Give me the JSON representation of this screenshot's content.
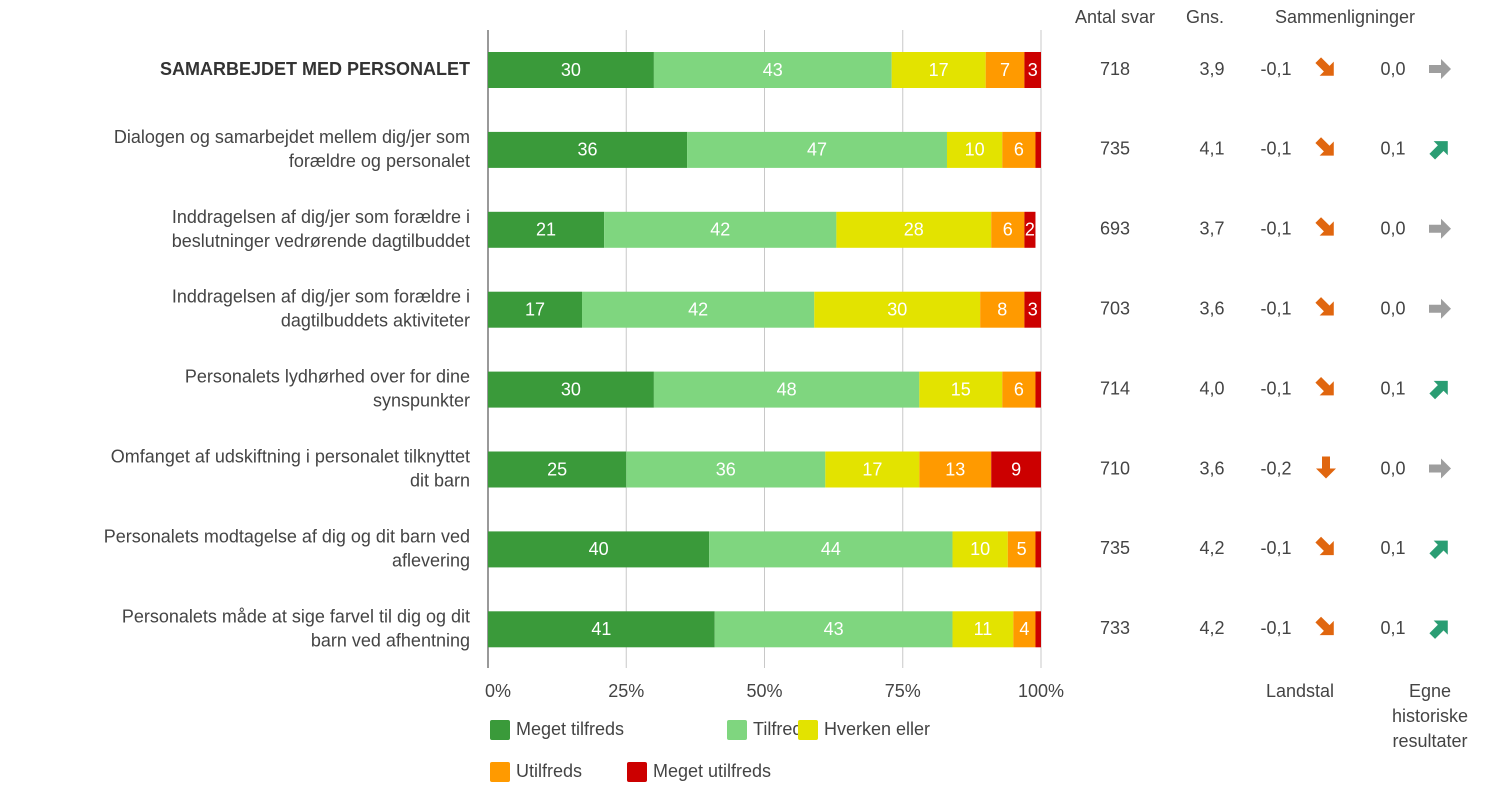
{
  "chart_data": {
    "type": "stacked-bar-horizontal",
    "categories": [
      "SAMARBEJDET MED PERSONALET",
      "Dialogen og samarbejdet mellem dig/jer som\nforældre og personalet",
      "Inddragelsen af dig/jer som forældre i\nbeslutninger vedrørende dagtilbuddet",
      "Inddragelsen af dig/jer som forældre i\ndagtilbuddets aktiviteter",
      "Personalets lydhørhed over for dine\nsynspunkter",
      "Omfanget af udskiftning i personalet tilknyttet\ndit barn",
      "Personalets modtagelse af dig og dit barn ved\naflevering",
      "Personalets måde at sige farvel til dig og dit\nbarn ved afhentning"
    ],
    "series": [
      {
        "name": "Meget tilfreds",
        "color": "#3a9a3a",
        "values": [
          30,
          36,
          21,
          17,
          30,
          25,
          40,
          41
        ],
        "value_labels": [
          30,
          36,
          21,
          17,
          30,
          25,
          40,
          41
        ]
      },
      {
        "name": "Tilfreds",
        "color": "#7fd67f",
        "values": [
          43,
          47,
          42,
          42,
          48,
          36,
          44,
          43
        ],
        "value_labels": [
          43,
          47,
          42,
          42,
          48,
          36,
          44,
          43
        ]
      },
      {
        "name": "Hverken eller",
        "color": "#e3e300",
        "values": [
          17,
          10,
          28,
          30,
          15,
          17,
          10,
          11
        ],
        "value_labels": [
          17,
          10,
          28,
          30,
          15,
          17,
          10,
          11
        ]
      },
      {
        "name": "Utilfreds",
        "color": "#ff9a00",
        "values": [
          7,
          6,
          6,
          8,
          6,
          13,
          5,
          4
        ],
        "value_labels": [
          7,
          6,
          6,
          8,
          6,
          13,
          5,
          4
        ]
      },
      {
        "name": "Meget utilfreds",
        "color": "#cc0000",
        "values": [
          3,
          1,
          2,
          3,
          1,
          9,
          1,
          1
        ],
        "value_labels": [
          3,
          null,
          2,
          3,
          null,
          9,
          null,
          null
        ]
      }
    ],
    "xlim": [
      0,
      100
    ],
    "xticks": [
      {
        "value": 0,
        "label": "0%"
      },
      {
        "value": 25,
        "label": "25%"
      },
      {
        "value": 50,
        "label": "50%"
      },
      {
        "value": 75,
        "label": "75%"
      },
      {
        "value": 100,
        "label": "100%"
      }
    ],
    "grid": true,
    "columns": {
      "count_header": "Antal svar",
      "count": [
        "718",
        "735",
        "693",
        "703",
        "714",
        "710",
        "735",
        "733"
      ],
      "mean_header": "Gns.",
      "mean": [
        "3,9",
        "4,1",
        "3,7",
        "3,6",
        "4,0",
        "3,6",
        "4,2",
        "4,2"
      ],
      "comparison_header": "Sammenligninger",
      "national_header": "Landstal",
      "national": [
        {
          "value": -0.1,
          "label": "-0,1"
        },
        {
          "value": -0.1,
          "label": "-0,1"
        },
        {
          "value": -0.1,
          "label": "-0,1"
        },
        {
          "value": -0.1,
          "label": "-0,1"
        },
        {
          "value": -0.1,
          "label": "-0,1"
        },
        {
          "value": -0.2,
          "label": "-0,2"
        },
        {
          "value": -0.1,
          "label": "-0,1"
        },
        {
          "value": -0.1,
          "label": "-0,1"
        }
      ],
      "history_header": "Egne\nhistoriske\nresultater",
      "history": [
        {
          "value": 0.0,
          "label": "0,0"
        },
        {
          "value": 0.1,
          "label": "0,1"
        },
        {
          "value": 0.0,
          "label": "0,0"
        },
        {
          "value": 0.0,
          "label": "0,0"
        },
        {
          "value": 0.1,
          "label": "0,1"
        },
        {
          "value": 0.0,
          "label": "0,0"
        },
        {
          "value": 0.1,
          "label": "0,1"
        },
        {
          "value": 0.1,
          "label": "0,1"
        }
      ]
    },
    "trend_colors": {
      "down": "#e0660f",
      "flat": "#9e9e9e",
      "up": "#2a9d73"
    }
  }
}
